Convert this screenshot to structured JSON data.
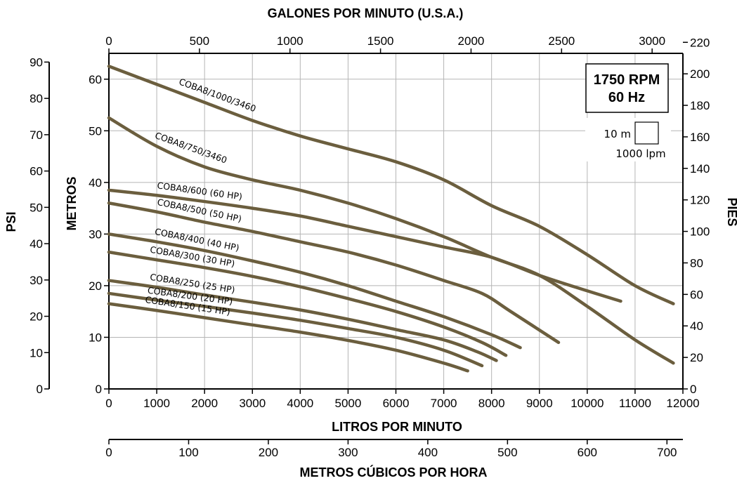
{
  "chart_data": {
    "type": "line",
    "title": "",
    "colors": {
      "curve": "#6b5e3e",
      "grid": "#b5b5b5",
      "axis": "#000000"
    },
    "grid": true,
    "axes": {
      "bottom": {
        "label": "LITROS POR MINUTO",
        "range": [
          0,
          12000
        ],
        "ticks": [
          0,
          1000,
          2000,
          3000,
          4000,
          5000,
          6000,
          7000,
          8000,
          9000,
          10000,
          11000,
          12000
        ]
      },
      "top": {
        "label": "GALONES POR MINUTO (U.S.A.)",
        "range": [
          0,
          3170
        ],
        "ticks": [
          0,
          500,
          1000,
          1500,
          2000,
          2500,
          3000
        ]
      },
      "meters_cubic": {
        "label": "METROS CÚBICOS POR HORA",
        "range": [
          0,
          720
        ],
        "ticks": [
          0,
          100,
          200,
          300,
          400,
          500,
          600,
          700
        ]
      },
      "left_inner": {
        "label": "METROS",
        "range": [
          0,
          65
        ],
        "ticks": [
          0,
          10,
          20,
          30,
          40,
          50,
          60
        ]
      },
      "left_outer": {
        "label": "PSI",
        "range": [
          0,
          92.4
        ],
        "ticks": [
          0,
          10,
          20,
          30,
          40,
          50,
          60,
          70,
          80,
          90
        ]
      },
      "right": {
        "label": "PIES",
        "range": [
          0,
          213
        ],
        "ticks": [
          0,
          20,
          40,
          60,
          80,
          100,
          120,
          140,
          160,
          180,
          200,
          220
        ]
      }
    },
    "info_box": {
      "rpm": "1750 RPM",
      "hz": "60 Hz"
    },
    "scale_key": {
      "height": "10 m",
      "flow": "1000 lpm"
    },
    "series": [
      {
        "name": "COBA8/1000/3460",
        "x": [
          0,
          1000,
          2000,
          3000,
          4000,
          5000,
          6000,
          7000,
          8000,
          9000,
          10000,
          11000,
          11800
        ],
        "y": [
          62.5,
          59,
          55.5,
          52,
          49,
          46.5,
          44,
          40.5,
          35.5,
          31.5,
          26,
          20,
          16.5
        ]
      },
      {
        "name": "COBA8/750/3460",
        "x": [
          0,
          1000,
          2000,
          3000,
          4000,
          5000,
          6000,
          7000,
          8000,
          9000,
          10000,
          11000,
          11800
        ],
        "y": [
          52.5,
          47,
          43,
          40.5,
          38.5,
          36,
          33,
          29.5,
          25.5,
          22,
          16,
          9.5,
          5
        ]
      },
      {
        "name": "COBA8/600 (60 HP)",
        "x": [
          0,
          1000,
          2000,
          3000,
          4000,
          5000,
          6000,
          7000,
          8000,
          9000,
          10000,
          10700
        ],
        "y": [
          38.5,
          37.5,
          36.3,
          35,
          33.5,
          31.5,
          29.5,
          27.5,
          25.5,
          22,
          19,
          17
        ]
      },
      {
        "name": "COBA8/500 (50 HP)",
        "x": [
          0,
          1000,
          2000,
          3000,
          4000,
          5000,
          6000,
          7000,
          7800,
          8400,
          9400
        ],
        "y": [
          36,
          34.3,
          32.3,
          30.5,
          28.5,
          26.5,
          24,
          21,
          18.5,
          15,
          9
        ]
      },
      {
        "name": "COBA8/400 (40 HP)",
        "x": [
          0,
          1000,
          2000,
          3000,
          4000,
          5000,
          6000,
          7000,
          8000,
          8600
        ],
        "y": [
          30,
          28.5,
          26.8,
          24.8,
          22.6,
          20,
          17,
          14,
          10.5,
          8
        ]
      },
      {
        "name": "COBA8/300 (30 HP)",
        "x": [
          0,
          1000,
          2000,
          3000,
          4000,
          5000,
          6000,
          7000,
          7800,
          8300
        ],
        "y": [
          26.5,
          25,
          23.5,
          21.8,
          19.8,
          17.5,
          15,
          12,
          9,
          6.5
        ]
      },
      {
        "name": "COBA8/250 (25 HP)",
        "x": [
          0,
          1000,
          2000,
          3000,
          4000,
          5000,
          6000,
          7000,
          7700,
          8100
        ],
        "y": [
          21,
          19.7,
          18.2,
          16.8,
          15.3,
          13.5,
          11.5,
          9.5,
          7.2,
          5.5
        ]
      },
      {
        "name": "COBA8/200 (20 HP)",
        "x": [
          0,
          1000,
          2000,
          3000,
          4000,
          5000,
          6000,
          7000,
          7800
        ],
        "y": [
          18.5,
          17.2,
          16,
          14.7,
          13.3,
          11.7,
          10,
          7.5,
          4.5
        ]
      },
      {
        "name": "COBA8/150 (15 HP)",
        "x": [
          0,
          1000,
          2000,
          3000,
          4000,
          5000,
          6000,
          7000,
          7500
        ],
        "y": [
          16.5,
          15.2,
          13.8,
          12.4,
          11,
          9.4,
          7.5,
          5,
          3.5
        ]
      }
    ]
  }
}
